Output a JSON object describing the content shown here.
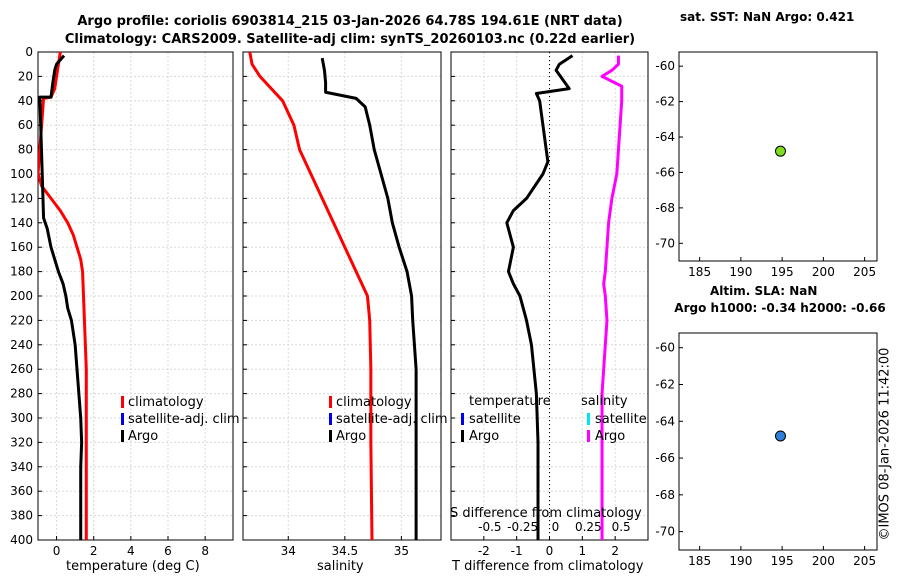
{
  "header": {
    "line1": "Argo profile: coriolis 6903814_215 03-Jan-2026 64.78S 194.61E (NRT data)",
    "line2": "Climatology: CARS2009. Satellite-adj clim: synTS_20260103.nc (0.22d earlier)"
  },
  "sst_title": "sat. SST: NaN Argo: 0.421",
  "sla_title1": "Altim. SLA: NaN",
  "sla_title2": "Argo h1000: -0.34 h2000: -0.66",
  "watermark": "©IMOS 08-Jan-2026 11:42:00",
  "colors": {
    "climatology": "#ff0000",
    "satellite": "#0000ee",
    "argo": "#000000",
    "cyan": "#00e5ee",
    "magenta": "#ff00ff",
    "sst_dot": "#7fdc1f",
    "sla_dot": "#2f7fd8"
  },
  "chart_data": [
    {
      "id": "temperature",
      "type": "line",
      "xlabel": "temperature (deg C)",
      "xlim": [
        -1,
        9.5
      ],
      "xticks": [
        0,
        2,
        4,
        6,
        8
      ],
      "ylim": [
        0,
        400
      ],
      "yticks": [
        0,
        20,
        40,
        60,
        80,
        100,
        120,
        140,
        160,
        180,
        200,
        220,
        240,
        260,
        280,
        300,
        320,
        340,
        360,
        380,
        400
      ],
      "legend": [
        "climatology",
        "satellite-adj. clim",
        "Argo"
      ],
      "series": [
        {
          "name": "climatology",
          "color": "#ff0000",
          "x": [
            0.2,
            0.1,
            0.0,
            -0.1,
            -0.3,
            -0.7,
            -1.0,
            -0.8,
            -0.3,
            0.2,
            0.6,
            0.9,
            1.1,
            1.3,
            1.4,
            1.45,
            1.5,
            1.55,
            1.6,
            1.6,
            1.6,
            1.6,
            1.6,
            1.6,
            1.6
          ],
          "y": [
            0,
            10,
            20,
            30,
            37,
            38,
            100,
            110,
            120,
            130,
            140,
            150,
            160,
            170,
            180,
            200,
            220,
            240,
            260,
            280,
            300,
            320,
            340,
            360,
            400
          ]
        },
        {
          "name": "Argo",
          "color": "#000000",
          "x": [
            0.4,
            0.0,
            -0.1,
            -0.2,
            -0.3,
            -0.9,
            -0.7,
            -0.5,
            -0.3,
            -0.1,
            0.1,
            0.35,
            0.5,
            0.55,
            0.6,
            0.8,
            1.0,
            1.1,
            1.2,
            1.3,
            1.35,
            1.3,
            1.3,
            1.3,
            1.3
          ],
          "y": [
            3,
            10,
            15,
            25,
            37,
            37,
            136,
            145,
            160,
            170,
            180,
            190,
            200,
            205,
            210,
            220,
            240,
            260,
            280,
            300,
            320,
            340,
            360,
            380,
            400
          ]
        }
      ]
    },
    {
      "id": "salinity",
      "type": "line",
      "xlabel": "salinity",
      "xlim": [
        33.6,
        35.35
      ],
      "xticks": [
        34,
        34.5,
        35
      ],
      "xtick_labels": [
        "34",
        "34.5",
        "35"
      ],
      "ylim": [
        0,
        400
      ],
      "legend": [
        "climatology",
        "satellite-adj. clim",
        "Argo"
      ],
      "series": [
        {
          "name": "climatology",
          "color": "#ff0000",
          "x": [
            33.66,
            33.68,
            33.75,
            33.85,
            33.95,
            34.05,
            34.1,
            34.2,
            34.3,
            34.4,
            34.5,
            34.6,
            34.65,
            34.7,
            34.72,
            34.73,
            34.73,
            34.74
          ],
          "y": [
            0,
            10,
            20,
            30,
            40,
            60,
            80,
            100,
            120,
            140,
            160,
            180,
            190,
            200,
            220,
            260,
            320,
            400
          ]
        },
        {
          "name": "Argo",
          "color": "#000000",
          "x": [
            34.3,
            34.32,
            34.33,
            34.33,
            34.6,
            34.68,
            34.72,
            34.76,
            34.82,
            34.88,
            34.92,
            34.98,
            35.05,
            35.09,
            35.1,
            35.13,
            35.13,
            35.13
          ],
          "y": [
            5,
            15,
            25,
            33,
            38,
            45,
            60,
            80,
            100,
            120,
            140,
            160,
            180,
            200,
            220,
            260,
            320,
            400
          ]
        }
      ]
    },
    {
      "id": "difference",
      "type": "line",
      "xlabel": "T difference from climatology",
      "xlabel_top": "S difference from climatology",
      "xlim": [
        -3.0,
        3.0
      ],
      "xticks": [
        -2,
        -1,
        0,
        1,
        2
      ],
      "xticks_top": [
        "-0.5",
        "-0.25",
        "0",
        "0.25",
        "0.5"
      ],
      "ylim": [
        0,
        400
      ],
      "legend_left_title": "temperature",
      "legend_right_title": "salinity",
      "legend_left": [
        "satellite",
        "Argo"
      ],
      "legend_right": [
        "satellite",
        "Argo"
      ],
      "series": [
        {
          "name": "temperature Argo",
          "color": "#000000",
          "x": [
            0.7,
            0.3,
            0.2,
            0.6,
            -0.4,
            -0.3,
            -0.2,
            -0.1,
            -0.05,
            -0.2,
            -0.7,
            -1.1,
            -1.3,
            -1.2,
            -1.1,
            -1.25,
            -1.1,
            -0.9,
            -0.8,
            -0.7,
            -0.55,
            -0.4,
            -0.35,
            -0.35,
            -0.35
          ],
          "y": [
            3,
            10,
            15,
            30,
            34,
            40,
            60,
            80,
            90,
            100,
            120,
            130,
            140,
            150,
            160,
            180,
            190,
            200,
            210,
            220,
            240,
            280,
            320,
            360,
            400
          ]
        },
        {
          "name": "salinity Argo",
          "color": "#ff00ff",
          "x": [
            2.1,
            2.1,
            1.9,
            1.6,
            2.2,
            2.2,
            2.15,
            2.1,
            2.05,
            1.9,
            1.8,
            1.75,
            1.7,
            1.65,
            1.7,
            1.75,
            1.7,
            1.65,
            1.6,
            1.6,
            1.6,
            1.6
          ],
          "y": [
            3,
            10,
            15,
            20,
            28,
            40,
            60,
            80,
            100,
            120,
            140,
            160,
            180,
            190,
            200,
            220,
            240,
            260,
            280,
            320,
            360,
            400
          ]
        }
      ]
    },
    {
      "id": "sst_map",
      "type": "scatter",
      "xlim": [
        182.5,
        206.5
      ],
      "xticks": [
        185,
        190,
        195,
        200,
        205
      ],
      "ylim": [
        -71,
        -59.2
      ],
      "yticks": [
        -60,
        -62,
        -64,
        -66,
        -68,
        -70
      ],
      "points": [
        {
          "x": 194.8,
          "y": -64.8
        }
      ]
    },
    {
      "id": "sla_map",
      "type": "scatter",
      "xlim": [
        182.5,
        206.5
      ],
      "xticks": [
        185,
        190,
        195,
        200,
        205
      ],
      "ylim": [
        -71,
        -59.2
      ],
      "yticks": [
        -60,
        -62,
        -64,
        -66,
        -68,
        -70
      ],
      "points": [
        {
          "x": 194.8,
          "y": -64.8
        }
      ]
    }
  ]
}
